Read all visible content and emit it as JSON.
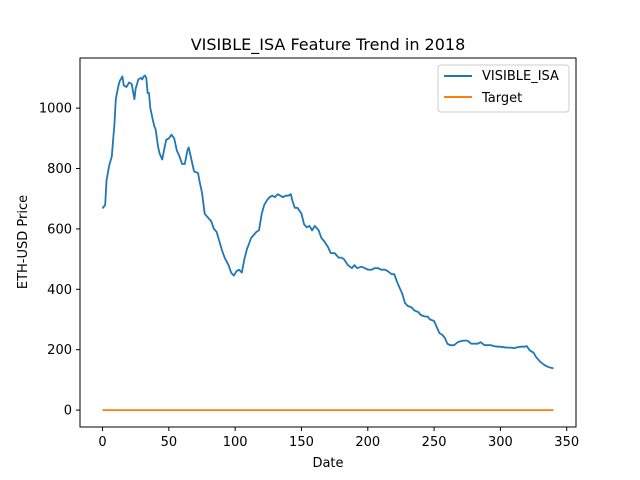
{
  "chart_data": {
    "type": "line",
    "title": "VISIBLE_ISA Feature Trend in 2018",
    "xlabel": "Date",
    "ylabel": "ETH-USD Price",
    "xlim": [
      -17,
      357
    ],
    "ylim": [
      -56,
      1166
    ],
    "xticks": [
      0,
      50,
      100,
      150,
      200,
      250,
      300,
      350
    ],
    "yticks": [
      0,
      200,
      400,
      600,
      800,
      1000
    ],
    "grid": false,
    "legend_position": "top-right",
    "series": [
      {
        "name": "VISIBLE_ISA",
        "color": "#1f77b4",
        "x": [
          0,
          2,
          3,
          5,
          7,
          9,
          10,
          12,
          13,
          15,
          16,
          18,
          20,
          22,
          24,
          25,
          27,
          29,
          30,
          31,
          32,
          33,
          34,
          35,
          36,
          38,
          39,
          40,
          42,
          43,
          45,
          47,
          48,
          50,
          52,
          54,
          56,
          58,
          60,
          62,
          64,
          65,
          67,
          69,
          72,
          73,
          75,
          77,
          79,
          82,
          84,
          86,
          88,
          90,
          92,
          95,
          97,
          99,
          101,
          103,
          105,
          107,
          109,
          110,
          112,
          114,
          116,
          118,
          120,
          122,
          124,
          126,
          128,
          130,
          132,
          134,
          136,
          138,
          140,
          142,
          143,
          145,
          147,
          150,
          152,
          154,
          156,
          158,
          160,
          163,
          165,
          167,
          170,
          172,
          175,
          178,
          180,
          182,
          185,
          188,
          190,
          192,
          195,
          198,
          200,
          203,
          205,
          208,
          210,
          213,
          215,
          218,
          220,
          222,
          224,
          226,
          228,
          230,
          233,
          235,
          238,
          240,
          243,
          245,
          247,
          250,
          252,
          254,
          256,
          258,
          260,
          262,
          265,
          268,
          270,
          272,
          275,
          278,
          280,
          283,
          285,
          288,
          290,
          293,
          295,
          298,
          300,
          303,
          305,
          308,
          310,
          313,
          315,
          318,
          320,
          322,
          325,
          327,
          330,
          333,
          335,
          338,
          340
        ],
        "y": [
          668,
          680,
          760,
          810,
          840,
          950,
          1030,
          1075,
          1090,
          1105,
          1075,
          1070,
          1085,
          1080,
          1030,
          1065,
          1095,
          1100,
          1095,
          1105,
          1108,
          1100,
          1050,
          1050,
          1000,
          960,
          940,
          930,
          870,
          850,
          830,
          875,
          895,
          900,
          912,
          900,
          860,
          840,
          815,
          815,
          860,
          870,
          830,
          790,
          785,
          760,
          720,
          650,
          640,
          625,
          600,
          590,
          560,
          530,
          505,
          480,
          455,
          445,
          460,
          465,
          455,
          500,
          535,
          545,
          570,
          580,
          590,
          595,
          650,
          680,
          695,
          705,
          710,
          705,
          715,
          710,
          705,
          710,
          710,
          715,
          695,
          670,
          670,
          650,
          615,
          605,
          610,
          595,
          610,
          595,
          570,
          560,
          540,
          520,
          520,
          505,
          505,
          500,
          480,
          470,
          480,
          470,
          475,
          470,
          465,
          465,
          470,
          470,
          465,
          465,
          460,
          450,
          450,
          425,
          405,
          385,
          355,
          345,
          340,
          330,
          325,
          315,
          310,
          310,
          300,
          295,
          275,
          255,
          250,
          240,
          220,
          215,
          215,
          225,
          228,
          230,
          230,
          220,
          220,
          220,
          225,
          215,
          215,
          215,
          212,
          210,
          210,
          208,
          207,
          207,
          205,
          208,
          210,
          210,
          212,
          198,
          190,
          175,
          160,
          150,
          145,
          140,
          138
        ]
      },
      {
        "name": "Target",
        "color": "#ff7f0e",
        "x": [
          0,
          340
        ],
        "y": [
          0,
          0
        ]
      }
    ]
  }
}
